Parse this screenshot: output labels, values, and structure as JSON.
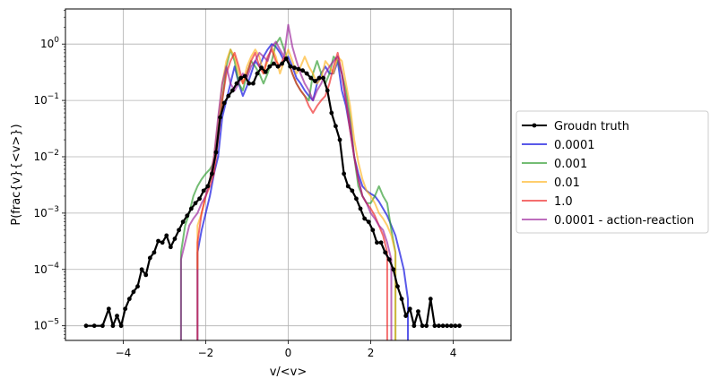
{
  "chart_data": {
    "type": "line",
    "title": "",
    "xlabel": "v/<v>",
    "ylabel": "P(frac{v}{<v>})",
    "xscale": "linear",
    "yscale": "log",
    "xlim": [
      -5.4,
      5.4
    ],
    "ylim": [
      5.5e-06,
      4.2
    ],
    "grid": true,
    "legend_position": "right",
    "x_ticks": [
      -4,
      -2,
      0,
      2,
      4
    ],
    "x_tick_labels": [
      "−4",
      "−2",
      "0",
      "2",
      "4"
    ],
    "y_ticks": [
      1e-05,
      0.0001,
      0.001,
      0.01,
      0.1,
      1
    ],
    "y_tick_labels": [
      {
        "base": "10",
        "exp": "−5"
      },
      {
        "base": "10",
        "exp": "−4"
      },
      {
        "base": "10",
        "exp": "−3"
      },
      {
        "base": "10",
        "exp": "−2"
      },
      {
        "base": "10",
        "exp": "−1"
      },
      {
        "base": "10",
        "exp": "0"
      }
    ],
    "series": [
      {
        "name": "Groudn truth",
        "color": "#000000",
        "marker": true,
        "x": [
          -4.9,
          -4.7,
          -4.5,
          -4.35,
          -4.25,
          -4.15,
          -4.05,
          -3.95,
          -3.85,
          -3.75,
          -3.65,
          -3.55,
          -3.45,
          -3.35,
          -3.25,
          -3.15,
          -3.05,
          -2.95,
          -2.85,
          -2.75,
          -2.65,
          -2.55,
          -2.45,
          -2.35,
          -2.25,
          -2.15,
          -2.05,
          -1.95,
          -1.85,
          -1.75,
          -1.65,
          -1.55,
          -1.45,
          -1.35,
          -1.25,
          -1.15,
          -1.05,
          -0.95,
          -0.85,
          -0.75,
          -0.65,
          -0.55,
          -0.45,
          -0.35,
          -0.25,
          -0.15,
          -0.05,
          0.05,
          0.15,
          0.25,
          0.35,
          0.45,
          0.55,
          0.65,
          0.75,
          0.85,
          0.95,
          1.05,
          1.15,
          1.25,
          1.35,
          1.45,
          1.55,
          1.65,
          1.75,
          1.85,
          1.95,
          2.05,
          2.15,
          2.25,
          2.35,
          2.45,
          2.55,
          2.65,
          2.75,
          2.85,
          2.95,
          3.05,
          3.15,
          3.25,
          3.35,
          3.45,
          3.55,
          3.65,
          3.75,
          3.85,
          3.95,
          4.05,
          4.15
        ],
        "y": [
          1e-05,
          1e-05,
          1e-05,
          2e-05,
          1e-05,
          1.5e-05,
          1e-05,
          2e-05,
          3e-05,
          4e-05,
          5e-05,
          0.0001,
          8e-05,
          0.00016,
          0.0002,
          0.00032,
          0.0003,
          0.0004,
          0.00025,
          0.00035,
          0.0005,
          0.0007,
          0.0009,
          0.0012,
          0.0015,
          0.0018,
          0.0025,
          0.003,
          0.005,
          0.012,
          0.05,
          0.09,
          0.12,
          0.15,
          0.2,
          0.25,
          0.27,
          0.2,
          0.2,
          0.3,
          0.38,
          0.32,
          0.4,
          0.45,
          0.4,
          0.45,
          0.55,
          0.4,
          0.38,
          0.36,
          0.34,
          0.3,
          0.25,
          0.22,
          0.25,
          0.25,
          0.15,
          0.06,
          0.035,
          0.02,
          0.005,
          0.003,
          0.0025,
          0.0018,
          0.0012,
          0.0008,
          0.0007,
          0.0005,
          0.0003,
          0.0003,
          0.0002,
          0.00015,
          0.0001,
          5e-05,
          3e-05,
          1.5e-05,
          2e-05,
          1e-05,
          1.8e-05,
          1e-05,
          1e-05,
          3e-05,
          1e-05,
          1e-05,
          1e-05,
          1e-05,
          1e-05,
          1e-05,
          1e-05
        ]
      },
      {
        "name": "0.0001",
        "color": "#0000dd",
        "marker": false,
        "x": [
          -2.2,
          -2.2,
          -2.1,
          -2.0,
          -1.9,
          -1.8,
          -1.7,
          -1.6,
          -1.5,
          -1.4,
          -1.3,
          -1.2,
          -1.1,
          -1.0,
          -0.9,
          -0.8,
          -0.7,
          -0.6,
          -0.5,
          -0.4,
          -0.3,
          -0.2,
          -0.1,
          0.0,
          0.1,
          0.2,
          0.3,
          0.4,
          0.5,
          0.6,
          0.7,
          0.8,
          0.9,
          1.0,
          1.1,
          1.2,
          1.3,
          1.4,
          1.5,
          1.6,
          1.7,
          1.8,
          1.9,
          2.0,
          2.1,
          2.2,
          2.3,
          2.4,
          2.5,
          2.6,
          2.7,
          2.8,
          2.9,
          2.9
        ],
        "y": [
          5.5e-06,
          0.0002,
          0.0005,
          0.001,
          0.002,
          0.005,
          0.01,
          0.05,
          0.1,
          0.2,
          0.4,
          0.2,
          0.12,
          0.18,
          0.3,
          0.5,
          0.4,
          0.6,
          0.8,
          1.0,
          0.9,
          0.7,
          0.5,
          0.6,
          0.4,
          0.25,
          0.2,
          0.15,
          0.12,
          0.1,
          0.2,
          0.3,
          0.4,
          0.3,
          0.3,
          0.5,
          0.15,
          0.08,
          0.03,
          0.01,
          0.005,
          0.003,
          0.0025,
          0.0022,
          0.002,
          0.0016,
          0.0012,
          0.0009,
          0.0006,
          0.0004,
          0.0002,
          0.0001,
          3e-05,
          5.5e-06
        ]
      },
      {
        "name": "0.001",
        "color": "#2a9a2a",
        "marker": false,
        "x": [
          -2.6,
          -2.6,
          -2.5,
          -2.4,
          -2.3,
          -2.2,
          -2.1,
          -2.0,
          -1.9,
          -1.8,
          -1.7,
          -1.6,
          -1.5,
          -1.4,
          -1.3,
          -1.2,
          -1.1,
          -1.0,
          -0.9,
          -0.8,
          -0.7,
          -0.6,
          -0.5,
          -0.4,
          -0.3,
          -0.2,
          -0.1,
          0.0,
          0.1,
          0.2,
          0.3,
          0.4,
          0.5,
          0.6,
          0.7,
          0.8,
          0.9,
          1.0,
          1.1,
          1.2,
          1.3,
          1.4,
          1.5,
          1.6,
          1.7,
          1.8,
          1.9,
          2.0,
          2.1,
          2.2,
          2.3,
          2.4,
          2.5,
          2.6,
          2.6
        ],
        "y": [
          5.5e-06,
          0.0002,
          0.0006,
          0.001,
          0.002,
          0.003,
          0.004,
          0.005,
          0.006,
          0.008,
          0.03,
          0.1,
          0.4,
          0.8,
          0.5,
          0.2,
          0.15,
          0.3,
          0.5,
          0.4,
          0.3,
          0.2,
          0.3,
          0.5,
          1.0,
          1.3,
          0.8,
          0.5,
          0.3,
          0.2,
          0.15,
          0.12,
          0.1,
          0.3,
          0.5,
          0.3,
          0.2,
          0.3,
          0.6,
          0.5,
          0.3,
          0.15,
          0.05,
          0.01,
          0.003,
          0.002,
          0.0015,
          0.0015,
          0.002,
          0.003,
          0.002,
          0.0015,
          0.0005,
          0.0002,
          5.5e-06
        ]
      },
      {
        "name": "0.01",
        "color": "#ffb41e",
        "marker": false,
        "x": [
          -2.2,
          -2.2,
          -2.1,
          -2.0,
          -1.9,
          -1.8,
          -1.7,
          -1.6,
          -1.5,
          -1.4,
          -1.3,
          -1.2,
          -1.1,
          -1.0,
          -0.9,
          -0.8,
          -0.7,
          -0.6,
          -0.5,
          -0.4,
          -0.3,
          -0.2,
          -0.1,
          0.0,
          0.1,
          0.2,
          0.3,
          0.4,
          0.5,
          0.6,
          0.7,
          0.8,
          0.9,
          1.0,
          1.1,
          1.2,
          1.3,
          1.4,
          1.5,
          1.6,
          1.7,
          1.8,
          1.9,
          2.0,
          2.1,
          2.2,
          2.3,
          2.4,
          2.5,
          2.6,
          2.6
        ],
        "y": [
          0.0001,
          0.0006,
          0.001,
          0.002,
          0.004,
          0.01,
          0.04,
          0.2,
          0.5,
          0.8,
          0.6,
          0.3,
          0.2,
          0.4,
          0.6,
          0.8,
          0.6,
          0.3,
          0.5,
          0.9,
          0.6,
          0.3,
          0.5,
          0.8,
          0.5,
          0.3,
          0.4,
          0.6,
          0.4,
          0.3,
          0.2,
          0.25,
          0.5,
          0.4,
          0.3,
          0.6,
          0.5,
          0.2,
          0.08,
          0.02,
          0.008,
          0.004,
          0.0025,
          0.002,
          0.0015,
          0.001,
          0.0008,
          0.0006,
          0.0004,
          0.0002,
          5.5e-06
        ]
      },
      {
        "name": "1.0",
        "color": "#ee2222",
        "marker": false,
        "x": [
          -2.2,
          -2.2,
          -2.1,
          -2.0,
          -1.9,
          -1.8,
          -1.7,
          -1.6,
          -1.5,
          -1.4,
          -1.3,
          -1.2,
          -1.1,
          -1.0,
          -0.9,
          -0.8,
          -0.7,
          -0.6,
          -0.5,
          -0.4,
          -0.3,
          -0.2,
          -0.1,
          0.0,
          0.1,
          0.2,
          0.3,
          0.4,
          0.5,
          0.6,
          0.7,
          0.8,
          0.9,
          1.0,
          1.1,
          1.2,
          1.3,
          1.4,
          1.5,
          1.6,
          1.7,
          1.8,
          1.9,
          2.0,
          2.1,
          2.2,
          2.3,
          2.4,
          2.4
        ],
        "y": [
          5.5e-06,
          0.0003,
          0.001,
          0.002,
          0.003,
          0.005,
          0.02,
          0.1,
          0.3,
          0.5,
          0.7,
          0.4,
          0.2,
          0.3,
          0.5,
          0.7,
          0.4,
          0.3,
          0.6,
          0.8,
          0.5,
          0.4,
          0.6,
          0.5,
          0.3,
          0.2,
          0.15,
          0.12,
          0.08,
          0.06,
          0.08,
          0.1,
          0.12,
          0.2,
          0.4,
          0.7,
          0.3,
          0.1,
          0.03,
          0.01,
          0.004,
          0.002,
          0.0015,
          0.0012,
          0.0009,
          0.0006,
          0.0004,
          0.0002,
          5.5e-06
        ]
      },
      {
        "name": "0.0001 - action-reaction",
        "color": "#991f99",
        "marker": false,
        "x": [
          -2.6,
          -2.6,
          -2.5,
          -2.4,
          -2.3,
          -2.2,
          -2.1,
          -2.0,
          -1.9,
          -1.8,
          -1.7,
          -1.6,
          -1.5,
          -1.4,
          -1.3,
          -1.2,
          -1.1,
          -1.0,
          -0.9,
          -0.8,
          -0.7,
          -0.6,
          -0.5,
          -0.4,
          -0.3,
          -0.2,
          -0.1,
          0.0,
          0.1,
          0.2,
          0.3,
          0.4,
          0.5,
          0.6,
          0.7,
          0.8,
          0.9,
          1.0,
          1.1,
          1.2,
          1.3,
          1.4,
          1.5,
          1.6,
          1.7,
          1.8,
          1.9,
          2.0,
          2.1,
          2.2,
          2.3,
          2.4,
          2.5,
          2.5
        ],
        "y": [
          5.5e-06,
          0.00015,
          0.0003,
          0.0006,
          0.0008,
          0.001,
          0.0015,
          0.002,
          0.004,
          0.01,
          0.05,
          0.2,
          0.4,
          0.2,
          0.15,
          0.2,
          0.3,
          0.25,
          0.4,
          0.5,
          0.7,
          0.6,
          0.5,
          0.9,
          1.1,
          0.8,
          0.6,
          2.2,
          0.9,
          0.5,
          0.3,
          0.2,
          0.15,
          0.1,
          0.15,
          0.2,
          0.3,
          0.4,
          0.5,
          0.6,
          0.3,
          0.1,
          0.04,
          0.01,
          0.004,
          0.002,
          0.0015,
          0.001,
          0.0008,
          0.0006,
          0.0005,
          0.0003,
          0.00015,
          5.5e-06
        ]
      }
    ]
  }
}
